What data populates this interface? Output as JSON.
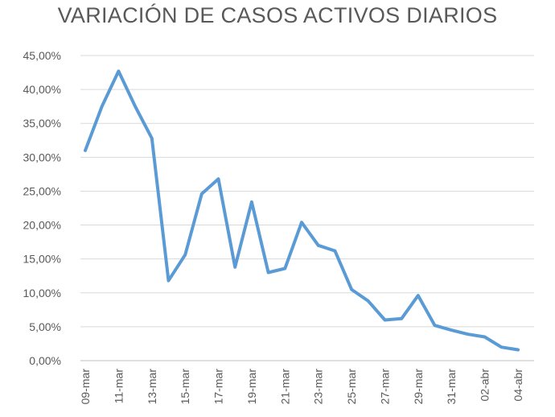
{
  "chart_data": {
    "type": "line",
    "title": "VARIACIÓN DE CASOS ACTIVOS DIARIOS",
    "xlabel": "",
    "ylabel": "",
    "ylim": [
      0,
      0.45
    ],
    "y_ticks": [
      "0,00%",
      "5,00%",
      "10,00%",
      "15,00%",
      "20,00%",
      "25,00%",
      "30,00%",
      "35,00%",
      "40,00%",
      "45,00%"
    ],
    "x_tick_labels": [
      "09-mar",
      "11-mar",
      "13-mar",
      "15-mar",
      "17-mar",
      "19-mar",
      "21-mar",
      "23-mar",
      "25-mar",
      "27-mar",
      "29-mar",
      "31-mar",
      "02-abr",
      "04-abr"
    ],
    "grid": true,
    "legend": "none",
    "line_color": "#5b9bd5",
    "x": [
      "09-mar",
      "10-mar",
      "11-mar",
      "12-mar",
      "13-mar",
      "14-mar",
      "15-mar",
      "16-mar",
      "17-mar",
      "18-mar",
      "19-mar",
      "20-mar",
      "21-mar",
      "22-mar",
      "23-mar",
      "24-mar",
      "25-mar",
      "26-mar",
      "27-mar",
      "28-mar",
      "29-mar",
      "30-mar",
      "31-mar",
      "01-abr",
      "02-abr",
      "03-abr",
      "04-abr"
    ],
    "series": [
      {
        "values": [
          0.31,
          0.375,
          0.427,
          0.375,
          0.328,
          0.118,
          0.156,
          0.246,
          0.268,
          0.138,
          0.234,
          0.13,
          0.136,
          0.204,
          0.17,
          0.162,
          0.105,
          0.088,
          0.06,
          0.062,
          0.096,
          0.052,
          0.045,
          0.039,
          0.035,
          0.02,
          0.016
        ]
      }
    ]
  }
}
